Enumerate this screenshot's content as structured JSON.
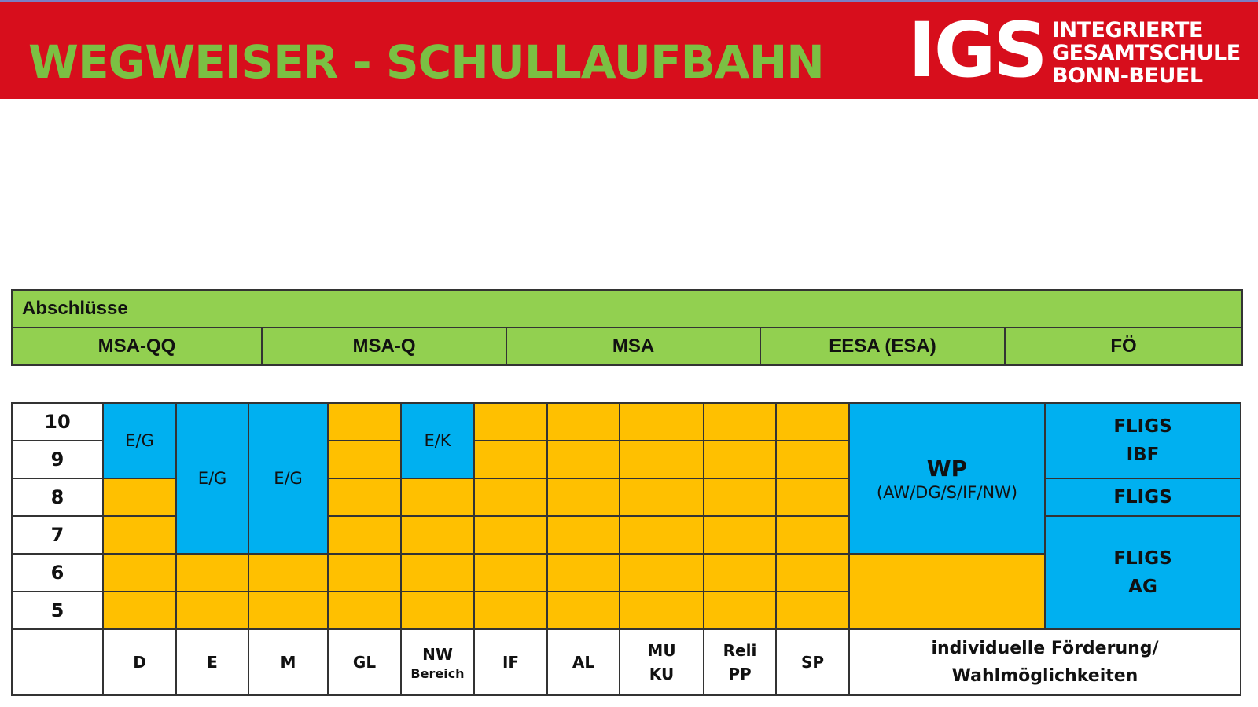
{
  "header": {
    "title": "WEGWEISER - SCHULLAUFBAHN",
    "logo_abbr": "IGS",
    "logo_line1": "INTEGRIERTE",
    "logo_line2": "GESAMTSCHULE",
    "logo_line3": "BONN-BEUEL"
  },
  "abschluesse": {
    "heading": "Abschlüsse",
    "items": [
      "MSA-QQ",
      "MSA-Q",
      "MSA",
      "EESA (ESA)",
      "FÖ"
    ]
  },
  "grades": [
    "10",
    "9",
    "8",
    "7",
    "6",
    "5"
  ],
  "levels": {
    "d": "E/G",
    "e": "E/G",
    "m": "E/G",
    "nw": "E/K"
  },
  "wp": {
    "title": "WP",
    "subtitle": "(AW/DG/S/IF/NW)"
  },
  "fliegs": {
    "top_line1": "FLIGS",
    "top_line2": "IBF",
    "middle": "FLIGS",
    "bottom_line1": "FLIGS",
    "bottom_line2": "AG"
  },
  "subjects": {
    "d": "D",
    "e": "E",
    "m": "M",
    "gl": "GL",
    "nw": "NW",
    "nw_sub": "Bereich",
    "if": "IF",
    "al": "AL",
    "mu": "MU",
    "ku": "KU",
    "reli": "Reli",
    "pp": "PP",
    "sp": "SP",
    "indiv_line1": "individuelle Förderung/",
    "indiv_line2": "Wahlmöglichkeiten"
  },
  "colors": {
    "header_red": "#d70e1c",
    "title_green": "#7bc043",
    "abschluss_green": "#92d050",
    "course_yellow": "#ffc000",
    "course_blue": "#00b0f0"
  }
}
